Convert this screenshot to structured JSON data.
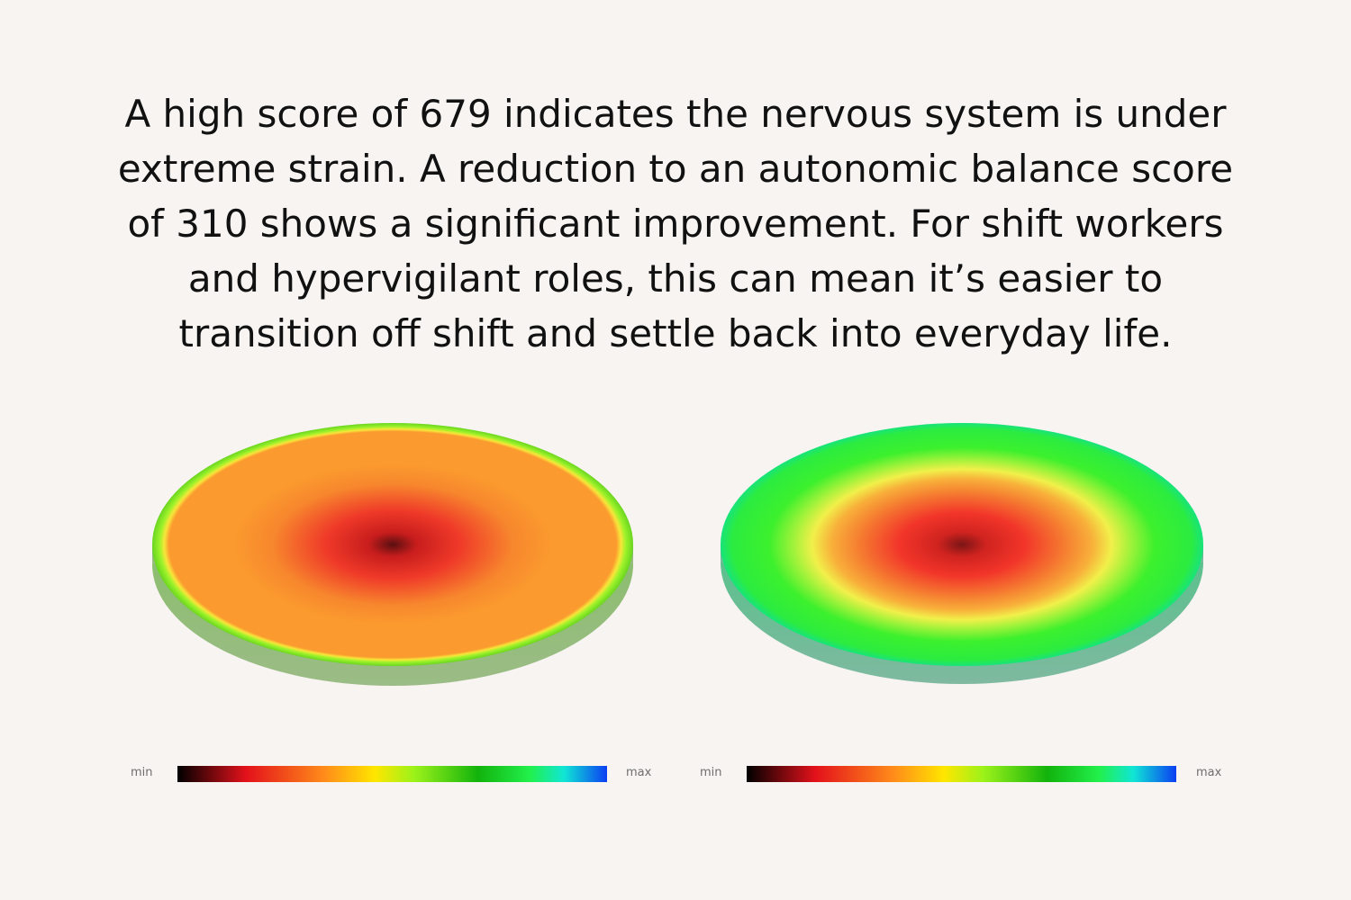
{
  "text": {
    "lines": [
      "A high score of 679 indicates the nervous system is under",
      "extreme strain. A reduction to an autonomic balance score",
      "of 310 shows a significant improvement. For shift workers",
      "and hypervigilant roles, this can mean it’s easier to",
      "transition off shift and settle back into everyday life."
    ]
  },
  "before": {
    "score_fraction_red_area": 0.35,
    "colors": {
      "center": "#5a0f10",
      "hot": "#ef2b26",
      "body": "#fb9a2e",
      "rim": "#9cf22a",
      "side": "#8cb46f"
    },
    "scale": {
      "min_label": "min",
      "max_label": "max"
    }
  },
  "after": {
    "colors": {
      "center": "#7a1515",
      "hot": "#f2352a",
      "mid": "#f8a838",
      "ring": "#f1f04a",
      "body": "#3cf02d",
      "rim": "#20ee65",
      "side": "#6fb693"
    },
    "scale": {
      "min_label": "min",
      "max_label": "max"
    }
  }
}
